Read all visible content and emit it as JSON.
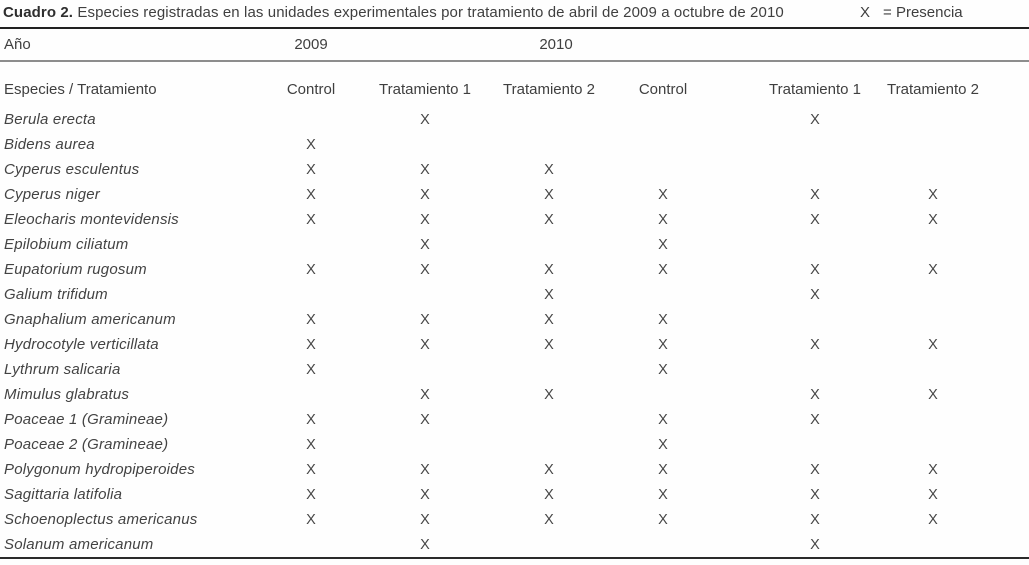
{
  "title": {
    "label": "Cuadro 2.",
    "text": "Especies registradas en las unidades experimentales por tratamiento de abril de 2009 a octubre de 2010"
  },
  "legend": {
    "symbol": "X",
    "meaning": "= Presencia"
  },
  "year_row": {
    "label": "Año",
    "year1": "2009",
    "year2": "2010"
  },
  "header_row": {
    "label": "Especies / Tratamiento",
    "columns": [
      "Control",
      "Tratamiento 1",
      "Tratamiento 2",
      "Control",
      "Tratamiento 1",
      "Tratamiento 2"
    ]
  },
  "rows": [
    {
      "species": "Berula erecta",
      "marks": [
        "",
        "X",
        "",
        "",
        "X",
        ""
      ]
    },
    {
      "species": "Bidens aurea",
      "marks": [
        "X",
        "",
        "",
        "",
        "",
        ""
      ]
    },
    {
      "species": "Cyperus esculentus",
      "marks": [
        "X",
        "X",
        "X",
        "",
        "",
        ""
      ]
    },
    {
      "species": "Cyperus niger",
      "marks": [
        "X",
        "X",
        "X",
        "X",
        "X",
        "X"
      ]
    },
    {
      "species": "Eleocharis montevidensis",
      "marks": [
        "X",
        "X",
        "X",
        "X",
        "X",
        "X"
      ]
    },
    {
      "species": "Epilobium ciliatum",
      "marks": [
        "",
        "X",
        "",
        "X",
        "",
        ""
      ]
    },
    {
      "species": "Eupatorium rugosum",
      "marks": [
        "X",
        "X",
        "X",
        "X",
        "X",
        "X"
      ]
    },
    {
      "species": "Galium trifidum",
      "marks": [
        "",
        "",
        "X",
        "",
        "X",
        ""
      ]
    },
    {
      "species": "Gnaphalium americanum",
      "marks": [
        "X",
        "X",
        "X",
        "X",
        "",
        ""
      ]
    },
    {
      "species": "Hydrocotyle verticillata",
      "marks": [
        "X",
        "X",
        "X",
        "X",
        "X",
        "X"
      ]
    },
    {
      "species": "Lythrum salicaria",
      "marks": [
        "X",
        "",
        "",
        "X",
        "",
        ""
      ]
    },
    {
      "species": "Mimulus glabratus",
      "marks": [
        "",
        "X",
        "X",
        "",
        "X",
        "X"
      ]
    },
    {
      "species": "Poaceae 1 (Gramineae)",
      "marks": [
        "X",
        "X",
        "",
        "X",
        "X",
        ""
      ]
    },
    {
      "species": "Poaceae 2 (Gramineae)",
      "marks": [
        "X",
        "",
        "",
        "X",
        "",
        ""
      ]
    },
    {
      "species": "Polygonum hydropiperoides",
      "marks": [
        "X",
        "X",
        "X",
        "X",
        "X",
        "X"
      ]
    },
    {
      "species": "Sagittaria latifolia",
      "marks": [
        "X",
        "X",
        "X",
        "X",
        "X",
        "X"
      ]
    },
    {
      "species": "Schoenoplectus americanus",
      "marks": [
        "X",
        "X",
        "X",
        "X",
        "X",
        "X"
      ]
    },
    {
      "species": "Solanum americanum",
      "marks": [
        "",
        "X",
        "",
        "",
        "X",
        ""
      ]
    }
  ]
}
